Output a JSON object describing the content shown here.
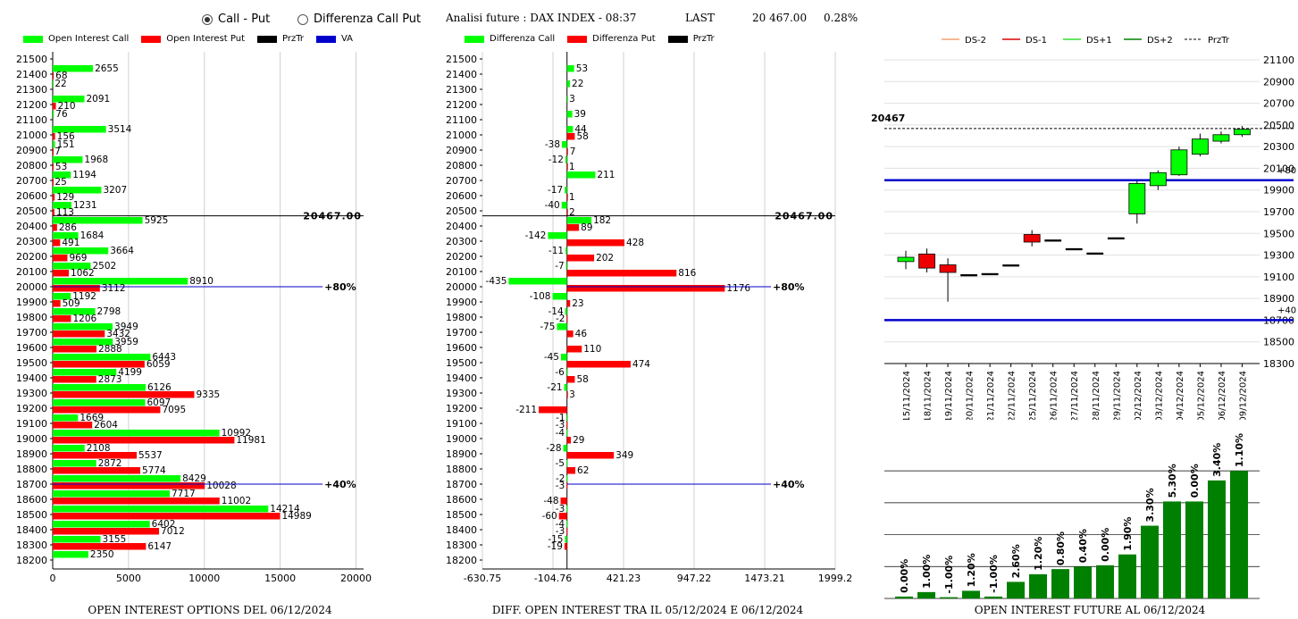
{
  "controls": {
    "call_put_label": "Call - Put",
    "diff_label": "Differenza Call Put",
    "info_title": "Analisi future : DAX INDEX - 08:37",
    "last_label": "LAST",
    "last_value": "20 467.00",
    "last_change": "0.28%"
  },
  "colors": {
    "green": "#00ff00",
    "red": "#ff0000",
    "black": "#000000",
    "blue": "#0000cc",
    "dark_green": "#008000"
  },
  "footers": {
    "left": "OPEN INTEREST OPTIONS DEL 06/12/2024",
    "middle": "DIFF. OPEN INTEREST TRA IL 05/12/2024 E 06/12/2024",
    "right": "OPEN INTEREST FUTURE AL 06/12/2024"
  },
  "chart_data": [
    {
      "type": "bar",
      "orientation": "horizontal",
      "legend": [
        "Open Interest Call",
        "Open Interest Put",
        "PrzTr",
        "VA"
      ],
      "categories": [
        21500,
        21400,
        21300,
        21200,
        21100,
        21000,
        20900,
        20800,
        20700,
        20600,
        20500,
        20400,
        20300,
        20200,
        20100,
        20000,
        19900,
        19800,
        19700,
        19600,
        19500,
        19400,
        19300,
        19200,
        19100,
        19000,
        18900,
        18800,
        18700,
        18600,
        18500,
        18400,
        18300,
        18200
      ],
      "series": [
        {
          "name": "Open Interest Call",
          "values": [
            null,
            2655,
            22,
            2091,
            76,
            3514,
            151,
            1968,
            1194,
            3207,
            1231,
            5925,
            1684,
            3664,
            2502,
            8910,
            1192,
            2798,
            3949,
            3959,
            6443,
            4199,
            6126,
            6097,
            1669,
            10992,
            2108,
            2872,
            8429,
            7717,
            14214,
            6402,
            3155,
            2350
          ]
        },
        {
          "name": "Open Interest Put",
          "values": [
            null,
            68,
            null,
            210,
            null,
            156,
            7,
            53,
            25,
            129,
            113,
            286,
            491,
            969,
            1062,
            3112,
            509,
            1206,
            3432,
            2888,
            6059,
            2873,
            9335,
            7095,
            2604,
            11981,
            5537,
            5774,
            10028,
            11002,
            14989,
            7012,
            6147,
            null
          ]
        }
      ],
      "xticks": [
        0,
        5000,
        10000,
        15000,
        20000
      ],
      "xlim": [
        0,
        20500
      ],
      "lines": [
        {
          "label": "20467.00",
          "strike": 20467,
          "kind": "PrzTr"
        },
        {
          "label": "80%",
          "strike": 20000,
          "kind": "VA",
          "x_end": 17800
        },
        {
          "label": "40%",
          "strike": 18700,
          "kind": "VA",
          "x_end": 17800
        }
      ]
    },
    {
      "type": "bar",
      "orientation": "horizontal",
      "legend": [
        "Differenza Call",
        "Differenza Put",
        "PrzTr"
      ],
      "categories": [
        21500,
        21400,
        21300,
        21200,
        21100,
        21000,
        20900,
        20800,
        20700,
        20600,
        20500,
        20400,
        20300,
        20200,
        20100,
        20000,
        19900,
        19800,
        19700,
        19600,
        19500,
        19400,
        19300,
        19200,
        19100,
        19000,
        18900,
        18800,
        18700,
        18600,
        18500,
        18400,
        18300,
        18200
      ],
      "series": [
        {
          "name": "Differenza Call",
          "values": [
            null,
            53,
            22,
            3,
            39,
            44,
            -38,
            -12,
            211,
            -17,
            -40,
            182,
            -142,
            -11,
            -7,
            -435,
            -108,
            -14,
            -75,
            null,
            -45,
            -6,
            -21,
            null,
            -1,
            -4,
            -28,
            -5,
            -2,
            null,
            -3,
            -4,
            -15,
            null
          ]
        },
        {
          "name": "Differenza Put",
          "values": [
            null,
            null,
            null,
            null,
            null,
            58,
            7,
            1,
            null,
            1,
            2,
            89,
            428,
            202,
            816,
            1176,
            23,
            -2,
            46,
            110,
            474,
            58,
            3,
            -211,
            -3,
            29,
            349,
            62,
            -3,
            -48,
            -60,
            -3,
            -19,
            null
          ]
        }
      ],
      "xticks": [
        "-630.75",
        "-104.76",
        "421.23",
        "947.22",
        "1473.21",
        "1999.2"
      ],
      "xlim": [
        -630.75,
        1999.2
      ],
      "lines": [
        {
          "label": "20467.00",
          "strike": 20467,
          "kind": "PrzTr"
        },
        {
          "label": "80%",
          "strike": 20000,
          "kind": "VA",
          "x_end": 1520
        },
        {
          "label": "40%",
          "strike": 18700,
          "kind": "VA",
          "x_end": 1520
        }
      ]
    },
    {
      "type": "candlestick",
      "legend": [
        "DS-2",
        "DS-1",
        "DS+1",
        "DS+2",
        "PrzTr"
      ],
      "categories": [
        "15/11/2024",
        "18/11/2024",
        "19/11/2024",
        "20/11/2024",
        "21/11/2024",
        "22/11/2024",
        "25/11/2024",
        "26/11/2024",
        "27/11/2024",
        "28/11/2024",
        "29/11/2024",
        "02/12/2024",
        "03/12/2024",
        "04/12/2024",
        "05/12/2024",
        "06/12/2024",
        "09/12/2024"
      ],
      "candles": [
        {
          "o": 19240,
          "c": 19280,
          "h": 19340,
          "l": 19170
        },
        {
          "o": 19310,
          "c": 19180,
          "h": 19360,
          "l": 19140
        },
        {
          "o": 19210,
          "c": 19140,
          "h": 19270,
          "l": 18870
        },
        {
          "o": 19120,
          "c": 19120,
          "h": 19120,
          "l": 19120
        },
        {
          "o": 19130,
          "c": 19130,
          "h": 19130,
          "l": 19130
        },
        {
          "o": 19210,
          "c": 19210,
          "h": 19210,
          "l": 19210
        },
        {
          "o": 19490,
          "c": 19420,
          "h": 19530,
          "l": 19380
        },
        {
          "o": 19440,
          "c": 19440,
          "h": 19440,
          "l": 19440
        },
        {
          "o": 19360,
          "c": 19360,
          "h": 19360,
          "l": 19360
        },
        {
          "o": 19320,
          "c": 19320,
          "h": 19320,
          "l": 19320
        },
        {
          "o": 19460,
          "c": 19460,
          "h": 19460,
          "l": 19460
        },
        {
          "o": 19680,
          "c": 19960,
          "h": 19980,
          "l": 19590
        },
        {
          "o": 19940,
          "c": 20060,
          "h": 20080,
          "l": 19900
        },
        {
          "o": 20040,
          "c": 20270,
          "h": 20300,
          "l": 20030
        },
        {
          "o": 20230,
          "c": 20370,
          "h": 20420,
          "l": 20210
        },
        {
          "o": 20350,
          "c": 20410,
          "h": 20440,
          "l": 20330
        },
        {
          "o": 20410,
          "c": 20460,
          "h": 20490,
          "l": 20390
        }
      ],
      "yticks": [
        21100,
        20900,
        20700,
        20500,
        20300,
        20100,
        19900,
        19700,
        19500,
        19300,
        19100,
        18900,
        18700,
        18500,
        18300
      ],
      "ylim": [
        18300,
        21100
      ],
      "prztr": {
        "value": 20467,
        "label": "20467"
      },
      "levels": [
        {
          "value": 19990,
          "label": "+80"
        },
        {
          "value": 18700,
          "label": "+40"
        }
      ]
    },
    {
      "type": "bar",
      "values": [
        0.3,
        1.0,
        0.2,
        1.2,
        0.3,
        2.6,
        3.8,
        4.6,
        5.0,
        5.2,
        6.9,
        11.4,
        15.2,
        15.2,
        18.5,
        20.0
      ],
      "labels": [
        "0.00%",
        "1.00%",
        "-1.00%",
        "1.20%",
        "-1.00%",
        "2.60%",
        "1.20%",
        "0.80%",
        "0.40%",
        "0.00%",
        "1.90%",
        "3.30%",
        "5.30%",
        "0.00%",
        "3.40%",
        "1.10%"
      ],
      "ylim": [
        0,
        21
      ]
    }
  ]
}
